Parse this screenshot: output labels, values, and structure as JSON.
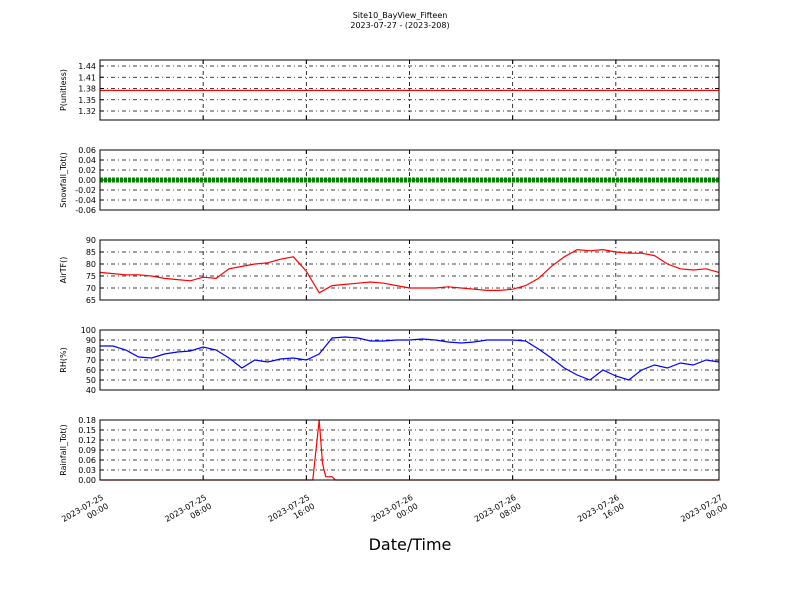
{
  "title": "Site10_BayView_Fifteen",
  "subtitle": "2023-07-27 - (2023-208)",
  "x_label": "Date/Time",
  "xlim": [
    "2023-07-25 00:00",
    "2023-07-27 00:00"
  ],
  "xticks": [
    "2023-07-25 00:00",
    "2023-07-25 08:00",
    "2023-07-25 16:00",
    "2023-07-26 00:00",
    "2023-07-26 08:00",
    "2023-07-26 16:00",
    "2023-07-27 00:00"
  ],
  "grid": true,
  "chart_data": [
    {
      "type": "line",
      "y_label": "P(unitless)",
      "ylim": [
        1.296,
        1.456
      ],
      "yticks": [
        1.32,
        1.35,
        1.38,
        1.41,
        1.44
      ],
      "series": [
        {
          "color": "#ff0000",
          "x": [
            "2023-07-25 00:00",
            "2023-07-27 00:00"
          ],
          "values": [
            1.375,
            1.375
          ]
        }
      ]
    },
    {
      "type": "line",
      "y_label": "Snowfall_Tot()",
      "ylim": [
        -0.06,
        0.06
      ],
      "yticks": [
        -0.06,
        -0.04,
        -0.02,
        {
          "value": 0,
          "label": "0.00"
        },
        0.02,
        0.04,
        0.06
      ],
      "series": [
        {
          "color": "#008000",
          "x": [
            "2023-07-25 00:00",
            "2023-07-27 00:00"
          ],
          "values": [
            0,
            0
          ],
          "width": 5
        }
      ]
    },
    {
      "type": "line",
      "y_label": "AirTF()",
      "ylim": [
        65,
        90
      ],
      "yticks": [
        65,
        70,
        75,
        80,
        85,
        90
      ],
      "series": [
        {
          "color": "#ff0000",
          "hourly_from": "2023-07-25 00:00",
          "values": [
            76.5,
            76,
            75.5,
            75.5,
            75,
            74,
            73.5,
            73,
            74.5,
            74,
            78,
            79,
            80,
            80.5,
            82,
            83,
            77,
            68,
            71,
            71.5,
            72,
            72.5,
            72,
            71,
            70,
            70,
            70,
            70.5,
            70,
            69.5,
            69,
            69,
            69.5,
            71,
            74,
            79,
            83,
            86,
            85.5,
            86,
            85,
            84.5,
            84.5,
            83.5,
            80,
            78,
            77.5,
            78,
            76.5
          ]
        }
      ]
    },
    {
      "type": "line",
      "y_label": "RH(%)",
      "ylim": [
        40,
        100
      ],
      "yticks": [
        40,
        50,
        60,
        70,
        80,
        90,
        100
      ],
      "series": [
        {
          "color": "#0000ff",
          "hourly_from": "2023-07-25 00:00",
          "values": [
            84,
            84,
            80,
            73,
            72,
            76,
            78,
            79,
            83,
            80,
            72,
            62,
            70,
            68,
            71,
            72,
            70,
            76,
            92,
            93,
            92,
            89,
            89,
            90,
            90,
            91,
            90,
            88,
            87,
            88,
            90,
            90,
            90,
            89,
            81,
            72,
            62,
            55,
            50,
            60,
            54,
            50,
            60,
            65,
            62,
            67,
            65,
            70,
            68
          ]
        }
      ]
    },
    {
      "type": "line",
      "y_label": "Rainfall_Tot()",
      "ylim": [
        0,
        0.18
      ],
      "yticks": [
        {
          "value": 0,
          "label": "0.00"
        },
        0.03,
        0.06,
        0.09,
        0.12,
        0.15,
        0.18
      ],
      "series": [
        {
          "color": "#ff0000",
          "x": [
            "2023-07-25 00:00",
            "2023-07-25 16:30",
            "2023-07-25 17:00",
            "2023-07-25 17:15",
            "2023-07-25 17:30",
            "2023-07-25 18:00",
            "2023-07-25 18:15",
            "2023-07-27 00:00"
          ],
          "values": [
            0,
            0,
            0.18,
            0.05,
            0.01,
            0.01,
            0,
            0
          ]
        }
      ]
    }
  ]
}
